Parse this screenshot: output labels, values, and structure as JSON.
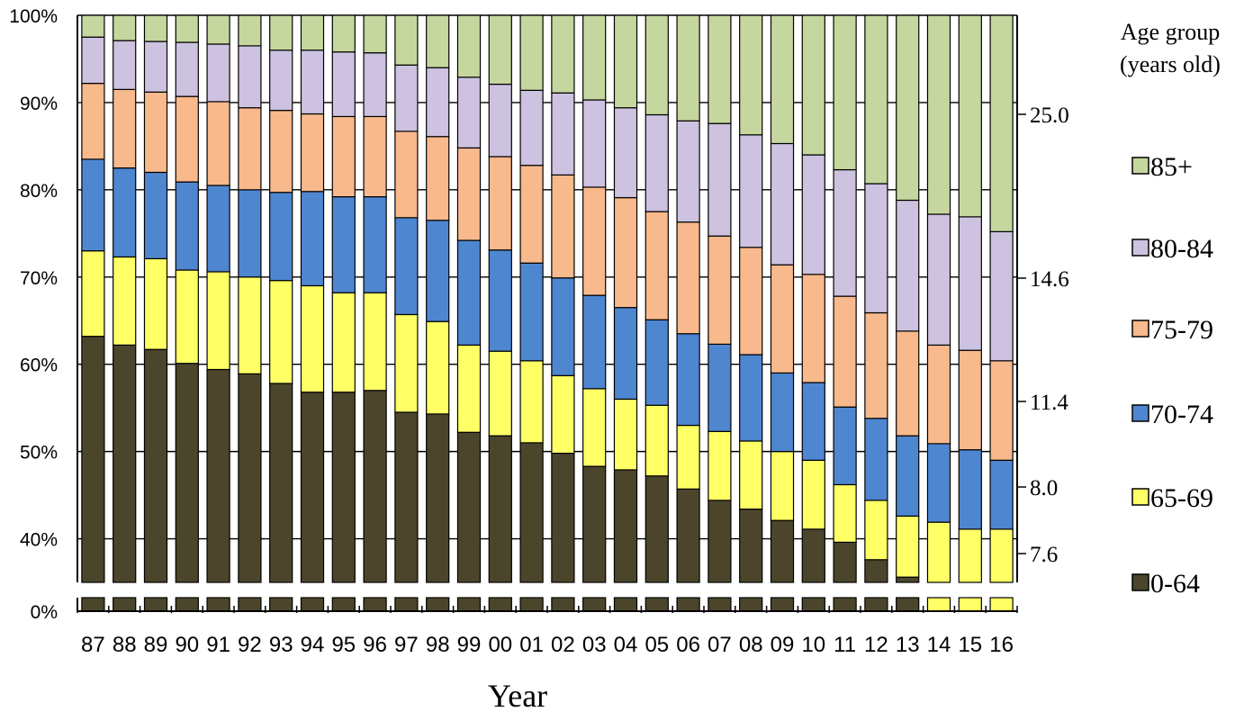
{
  "chart_data": {
    "type": "bar",
    "stacked": true,
    "percent_stacked": true,
    "title": "",
    "xlabel": "Year",
    "ylabel": "",
    "categories": [
      "87",
      "88",
      "89",
      "90",
      "91",
      "92",
      "93",
      "94",
      "95",
      "96",
      "97",
      "98",
      "99",
      "00",
      "01",
      "02",
      "03",
      "04",
      "05",
      "06",
      "07",
      "08",
      "09",
      "10",
      "11",
      "12",
      "13",
      "14",
      "15",
      "16"
    ],
    "y_ticks": [
      "0%",
      "40%",
      "50%",
      "60%",
      "70%",
      "80%",
      "90%",
      "100%"
    ],
    "y_axis_break": {
      "from": 0,
      "to": 35
    },
    "secondary_y_labels": [
      "7.6",
      "8.0",
      "11.4",
      "14.6",
      "25.0"
    ],
    "legend": {
      "title_line1": "Age group",
      "title_line2": "(years old)",
      "placement": "right"
    },
    "grid": true,
    "series": [
      {
        "name": "0-64",
        "color": "#4b452c",
        "values": [
          63.2,
          62.2,
          61.7,
          60.1,
          59.4,
          58.9,
          57.8,
          56.8,
          56.8,
          57.0,
          54.5,
          54.3,
          52.2,
          51.8,
          51.0,
          49.8,
          48.3,
          47.9,
          47.2,
          45.7,
          44.4,
          43.4,
          42.1,
          41.1,
          39.6,
          37.6,
          35.6,
          34.8,
          33.0,
          32.0
        ]
      },
      {
        "name": "65-69",
        "color": "#ffff66",
        "values": [
          9.8,
          10.1,
          10.4,
          10.7,
          11.2,
          11.1,
          11.8,
          12.2,
          11.4,
          11.2,
          11.2,
          10.6,
          10.0,
          9.7,
          9.4,
          8.9,
          8.9,
          8.1,
          8.1,
          7.3,
          7.9,
          7.8,
          7.9,
          7.9,
          6.6,
          6.8,
          7.0,
          7.1,
          8.1,
          9.1
        ]
      },
      {
        "name": "70-74",
        "color": "#4f86d0",
        "values": [
          10.5,
          10.2,
          9.9,
          10.1,
          9.9,
          10.0,
          10.1,
          10.8,
          11.0,
          11.0,
          11.1,
          11.6,
          12.0,
          11.6,
          11.2,
          11.2,
          10.7,
          10.5,
          9.8,
          10.5,
          10.0,
          9.9,
          9.0,
          8.9,
          8.9,
          9.4,
          9.2,
          9.0,
          9.1,
          7.9
        ]
      },
      {
        "name": "75-79",
        "color": "#f8b98c",
        "values": [
          8.7,
          9.0,
          9.2,
          9.8,
          9.6,
          9.4,
          9.4,
          8.9,
          9.2,
          9.2,
          9.9,
          9.6,
          10.6,
          10.7,
          11.2,
          11.8,
          12.4,
          12.6,
          12.4,
          12.8,
          12.4,
          12.3,
          12.4,
          12.4,
          12.7,
          12.1,
          12.0,
          11.3,
          11.4,
          11.4
        ]
      },
      {
        "name": "80-84",
        "color": "#cdc2e0",
        "values": [
          5.3,
          5.6,
          5.8,
          6.2,
          6.6,
          7.1,
          6.9,
          7.3,
          7.4,
          7.3,
          7.6,
          7.9,
          8.1,
          8.3,
          8.6,
          9.4,
          10.0,
          10.3,
          11.1,
          11.6,
          12.9,
          12.9,
          13.9,
          13.7,
          14.5,
          14.8,
          15.0,
          15.0,
          15.3,
          14.8
        ]
      },
      {
        "name": "85+",
        "color": "#c5d79e",
        "values": [
          2.5,
          2.9,
          3.0,
          3.1,
          3.3,
          3.5,
          4.0,
          4.0,
          4.2,
          4.3,
          5.7,
          6.0,
          7.1,
          7.9,
          8.6,
          8.9,
          9.7,
          10.6,
          11.4,
          12.1,
          12.4,
          13.7,
          14.7,
          16.0,
          17.7,
          19.3,
          21.2,
          22.8,
          23.1,
          24.8
        ]
      }
    ]
  }
}
